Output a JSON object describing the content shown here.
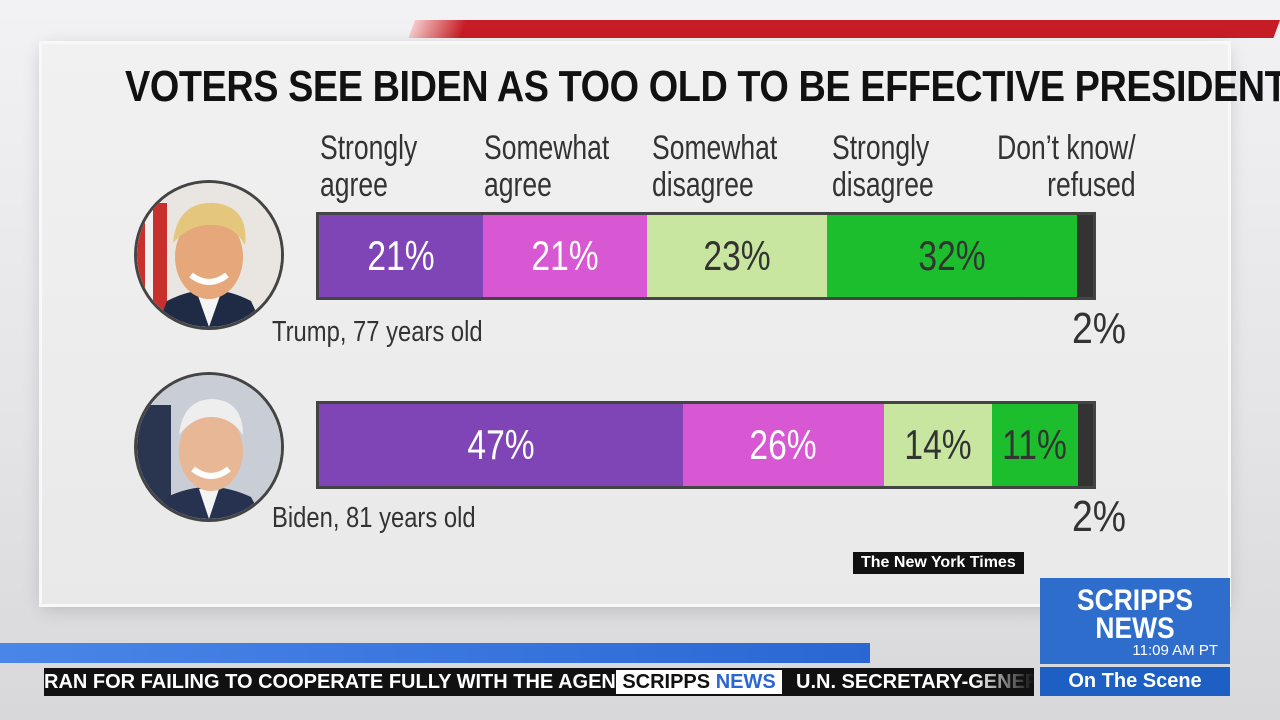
{
  "chart_data": {
    "type": "bar",
    "orientation": "horizontal-stacked-100",
    "title": "VOTERS SEE BIDEN AS TOO OLD TO BE EFFECTIVE PRESIDENT",
    "categories_display": [
      "Strongly\nagree",
      "Somewhat\nagree",
      "Somewhat\ndisagree",
      "Strongly\ndisagree",
      "Don’t know/\nrefused"
    ],
    "series_names": [
      "Strongly agree",
      "Somewhat agree",
      "Somewhat disagree",
      "Strongly disagree",
      "Don’t know/refused"
    ],
    "colors": [
      "#7f45b7",
      "#d857d3",
      "#c8e6a0",
      "#1cbe2e",
      "#333333"
    ],
    "text_colors": [
      "#ffffff",
      "#ffffff",
      "#333333",
      "#333333",
      "#333333"
    ],
    "rows": [
      {
        "label": "Trump, 77 years old",
        "values": [
          21,
          21,
          23,
          32,
          2
        ],
        "labels": [
          "21%",
          "21%",
          "23%",
          "32%",
          "2%"
        ]
      },
      {
        "label": "Biden, 81 years old",
        "values": [
          47,
          26,
          14,
          11,
          2
        ],
        "labels": [
          "47%",
          "26%",
          "14%",
          "11%",
          "2%"
        ]
      }
    ],
    "unit": "%"
  },
  "source": "The New York Times",
  "network": {
    "logo_line1": "SCRIPPS",
    "logo_line2": "NEWS",
    "time": "11:09 AM PT",
    "program": "On The Scene"
  },
  "ticker": {
    "headline_left": "RAN FOR FAILING TO COOPERATE FULLY WITH THE AGENCY",
    "brand_a": "SCRIPPS",
    "brand_b": "NEWS",
    "headline_right": "U.N. SECRETARY-GENERA"
  }
}
